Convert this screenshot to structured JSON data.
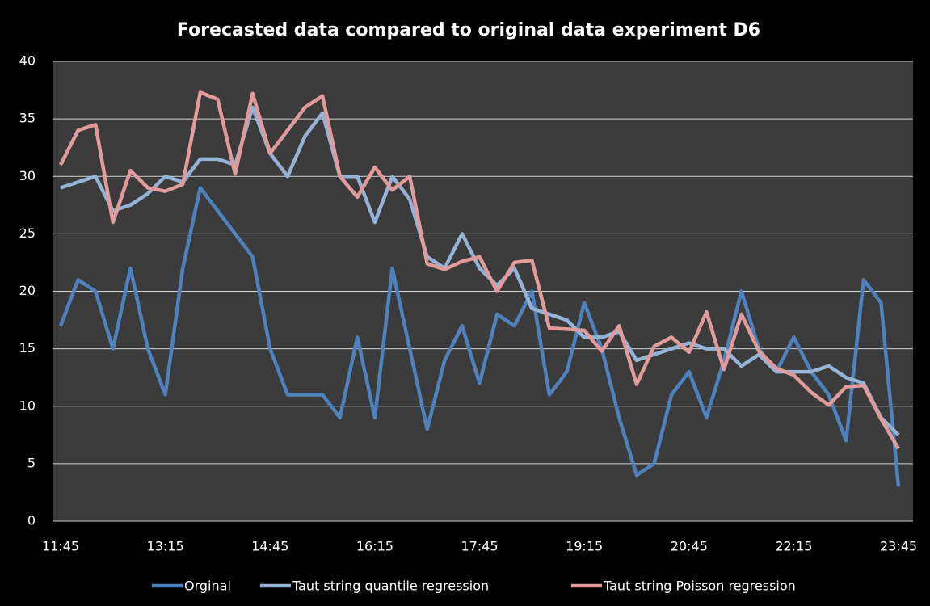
{
  "chart_data": {
    "type": "line",
    "title": "Forecasted data compared to original data experiment D6",
    "categories": [
      "11:45",
      null,
      null,
      null,
      null,
      null,
      "13:15",
      null,
      null,
      null,
      null,
      null,
      "14:45",
      null,
      null,
      null,
      null,
      null,
      "16:15",
      null,
      null,
      null,
      null,
      null,
      "17:45",
      null,
      null,
      null,
      null,
      null,
      "19:15",
      null,
      null,
      null,
      null,
      null,
      "20:45",
      null,
      null,
      null,
      null,
      null,
      "22:15",
      null,
      null,
      null,
      null,
      null,
      "23:45"
    ],
    "series": [
      {
        "name": "Orginal",
        "color": "#4f81bd",
        "values": [
          17,
          21,
          20,
          15,
          22,
          15,
          11,
          22,
          29,
          27,
          25,
          23,
          15,
          11,
          11,
          11,
          9,
          16,
          9,
          22,
          15,
          8,
          14,
          17,
          12,
          18,
          17,
          20,
          11,
          13,
          19,
          15,
          9,
          4,
          5,
          11,
          13,
          9,
          14,
          20,
          15,
          13,
          16,
          13,
          11,
          7,
          21,
          19,
          3
        ]
      },
      {
        "name": "Taut string quantile regression",
        "color": "#95b3d7",
        "values": [
          29,
          29.5,
          30,
          27,
          27.5,
          28.5,
          30,
          29.5,
          31.5,
          31.5,
          31,
          36,
          32,
          30,
          33.5,
          35.5,
          30,
          30,
          26,
          30,
          28,
          23,
          22,
          25,
          22,
          20.5,
          22,
          18.5,
          18,
          17.5,
          16,
          16,
          16.5,
          14,
          14.5,
          15,
          15.5,
          15,
          15,
          13.5,
          14.5,
          13,
          13,
          13,
          13.5,
          12.5,
          12,
          9,
          7.5
        ]
      },
      {
        "name": "Taut string Poisson regression",
        "color": "#e09b9a",
        "values": [
          31,
          34,
          34.5,
          26,
          30.5,
          29,
          28.7,
          29.3,
          37.3,
          36.7,
          30.2,
          37.2,
          32,
          34,
          36,
          37,
          30,
          28.2,
          30.8,
          28.8,
          30,
          22.4,
          21.9,
          22.6,
          23,
          20,
          22.5,
          22.7,
          16.8,
          16.7,
          16.6,
          14.8,
          17,
          11.9,
          15.2,
          16,
          14.7,
          18.2,
          13.2,
          18,
          14.8,
          13.3,
          12.7,
          11.2,
          10.1,
          11.7,
          11.8,
          8.9,
          6.3
        ]
      }
    ],
    "ylim": [
      0,
      40
    ],
    "yticks": [
      0,
      5,
      10,
      15,
      20,
      25,
      30,
      35,
      40
    ],
    "grid": true,
    "legend": "bottom"
  }
}
